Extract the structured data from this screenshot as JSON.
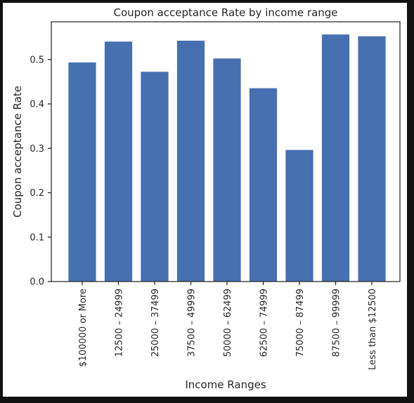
{
  "chart_data": {
    "type": "bar",
    "title": "Coupon acceptance Rate by income range",
    "xlabel": "Income Ranges",
    "ylabel": "Coupon acceptance Rate",
    "categories": [
      "$100000 or More",
      "12500 – 24999",
      "25000 – 37499",
      "37500 – 49999",
      "50000 – 62499",
      "62500 – 74999",
      "75000 – 87499",
      "87500 – 99999",
      "Less than $12500"
    ],
    "values": [
      0.494,
      0.541,
      0.473,
      0.543,
      0.503,
      0.436,
      0.297,
      0.557,
      0.553
    ],
    "ylim": [
      0,
      0.585
    ],
    "yticks": [
      0.0,
      0.1,
      0.2,
      0.3,
      0.4,
      0.5
    ],
    "ytick_labels": [
      "0.0",
      "0.1",
      "0.2",
      "0.3",
      "0.4",
      "0.5"
    ],
    "grid": false,
    "bar_color": "#4770b0"
  }
}
